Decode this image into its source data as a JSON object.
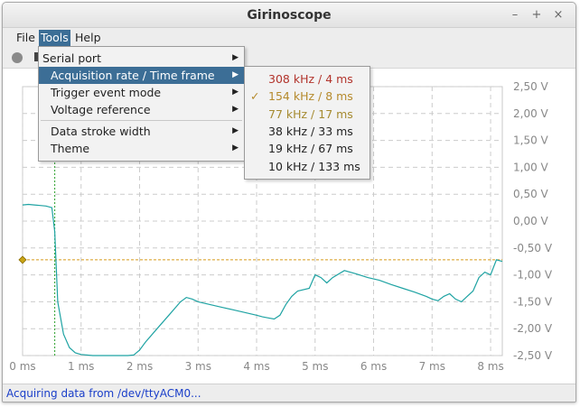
{
  "window": {
    "title": "Girinoscope",
    "controls": [
      "–",
      "+",
      "×"
    ]
  },
  "menubar": {
    "items": [
      "File",
      "Tools",
      "Help"
    ],
    "active": "Tools"
  },
  "tools_menu": {
    "items": [
      {
        "label": "Serial port",
        "submenu": true
      },
      {
        "label": "Acquisition rate / Time frame",
        "submenu": true,
        "highlighted": true
      },
      {
        "label": "Trigger event mode",
        "submenu": true
      },
      {
        "label": "Voltage reference",
        "submenu": true
      },
      {
        "label": "Data stroke width",
        "submenu": true
      },
      {
        "label": "Theme",
        "submenu": true
      }
    ],
    "arrow": "▶"
  },
  "rate_submenu": {
    "items": [
      {
        "label": "308 kHz / 4 ms",
        "color": "#b2342c",
        "checked": false
      },
      {
        "label": "154 kHz / 8 ms",
        "color": "#b58a2c",
        "checked": true
      },
      {
        "label": "77 kHz / 17 ms",
        "color": "#a58a30",
        "checked": false
      },
      {
        "label": "38 kHz / 33 ms",
        "color": "#222222",
        "checked": false
      },
      {
        "label": "19 kHz / 67 ms",
        "color": "#222222",
        "checked": false
      },
      {
        "label": "10 kHz / 133 ms",
        "color": "#222222",
        "checked": false
      }
    ],
    "check_glyph": "✓"
  },
  "chart_data": {
    "type": "line",
    "x_ticks": [
      "0 ms",
      "1 ms",
      "2 ms",
      "3 ms",
      "4 ms",
      "5 ms",
      "6 ms",
      "7 ms",
      "8 ms"
    ],
    "y_ticks": [
      "2,50 V",
      "2,00 V",
      "1,50 V",
      "1,00 V",
      "0,50 V",
      "0,00 V",
      "-0,50 V",
      "-1,00 V",
      "-1,50 V",
      "-2,00 V",
      "-2,50 V"
    ],
    "xlim": [
      0,
      8.2
    ],
    "ylim": [
      -2.5,
      2.5
    ],
    "grid": true,
    "trigger_level": -0.72,
    "trigger_time": 0.55,
    "series_color": "#1fa3a3",
    "trigger_color": "#d89a1a",
    "trigger_time_color": "#2aa02a",
    "series": [
      {
        "x": [
          0,
          0.1,
          0.2,
          0.3,
          0.4,
          0.5,
          0.55,
          0.6,
          0.7,
          0.8,
          0.9,
          1.0,
          1.2,
          1.4,
          1.6,
          1.8,
          1.9,
          2.0,
          2.1,
          2.3,
          2.5,
          2.7,
          2.8,
          2.9,
          3.0,
          3.2,
          3.4,
          3.6,
          3.8,
          4.0,
          4.1,
          4.2,
          4.3,
          4.4,
          4.5,
          4.6,
          4.7,
          4.9,
          5.0,
          5.1,
          5.2,
          5.3,
          5.5,
          5.7,
          5.9,
          6.1,
          6.3,
          6.5,
          6.7,
          6.9,
          7.0,
          7.1,
          7.2,
          7.3,
          7.4,
          7.5,
          7.6,
          7.7,
          7.8,
          7.9,
          8.0,
          8.1,
          8.2
        ],
        "y": [
          0.3,
          0.31,
          0.3,
          0.29,
          0.28,
          0.25,
          -0.2,
          -1.5,
          -2.1,
          -2.35,
          -2.45,
          -2.48,
          -2.5,
          -2.5,
          -2.5,
          -2.5,
          -2.49,
          -2.4,
          -2.25,
          -2.0,
          -1.75,
          -1.5,
          -1.42,
          -1.45,
          -1.5,
          -1.55,
          -1.6,
          -1.65,
          -1.7,
          -1.75,
          -1.78,
          -1.8,
          -1.82,
          -1.75,
          -1.55,
          -1.4,
          -1.3,
          -1.25,
          -1.0,
          -1.05,
          -1.15,
          -1.05,
          -0.92,
          -0.98,
          -1.05,
          -1.1,
          -1.18,
          -1.25,
          -1.32,
          -1.4,
          -1.45,
          -1.48,
          -1.4,
          -1.35,
          -1.45,
          -1.5,
          -1.4,
          -1.3,
          -1.05,
          -0.95,
          -1.0,
          -0.72,
          -0.75
        ]
      }
    ]
  }
}
